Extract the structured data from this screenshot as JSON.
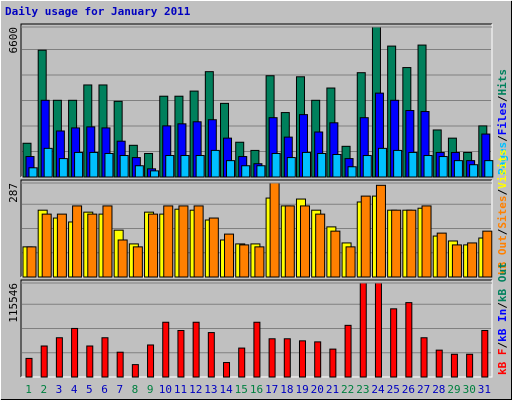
{
  "chart_data": [
    {
      "type": "bar",
      "title": "Daily usage for January 2011",
      "title_color": "#0000c0",
      "ylim": [
        0,
        6600
      ],
      "yticks": [
        6600
      ],
      "separator": "/",
      "legend": [
        {
          "name": "Pages",
          "color": "#00c0ff"
        },
        {
          "name": "Files",
          "color": "#0000ff"
        },
        {
          "name": "Hits",
          "color": "#00805c"
        }
      ],
      "series": [
        {
          "color": "#00805c",
          "values": [
            1485,
            5580,
            3375,
            3375,
            4050,
            4050,
            3330,
            1395,
            1035,
            3555,
            3555,
            3780,
            4635,
            3240,
            1530,
            1170,
            4455,
            2835,
            4410,
            3375,
            3915,
            1350,
            4590,
            6600,
            5760,
            4815,
            5805,
            2070,
            1710,
            1080,
            2250
          ]
        },
        {
          "color": "#0000ff",
          "values": [
            900,
            3375,
            2025,
            2160,
            2205,
            2160,
            1575,
            855,
            360,
            2250,
            2340,
            2430,
            2520,
            1710,
            900,
            585,
            2610,
            1755,
            2745,
            1980,
            2385,
            810,
            2610,
            3690,
            3375,
            2925,
            2880,
            1080,
            1080,
            720,
            1890
          ]
        },
        {
          "color": "#00c0ff",
          "values": [
            405,
            1260,
            810,
            1080,
            1080,
            1035,
            945,
            495,
            270,
            945,
            945,
            945,
            1170,
            720,
            495,
            495,
            1035,
            855,
            1080,
            1035,
            990,
            450,
            945,
            1260,
            1170,
            1080,
            945,
            900,
            720,
            540,
            720
          ]
        }
      ]
    },
    {
      "type": "bar",
      "ylim": [
        0,
        287
      ],
      "yticks": [
        287
      ],
      "separator": "/",
      "legend": [
        {
          "name": "kB Out",
          "color": "#ff8000"
        },
        {
          "name": "Sites",
          "color": "#ff8000"
        },
        {
          "name": "Visits",
          "color": "#ffff00"
        }
      ],
      "series": [
        {
          "color": "#ffff00",
          "values": [
            92,
            204,
            180,
            168,
            198,
            192,
            143,
            101,
            198,
            192,
            207,
            204,
            174,
            113,
            101,
            101,
            241,
            217,
            238,
            204,
            153,
            104,
            229,
            247,
            204,
            204,
            210,
            125,
            110,
            98,
            119
          ]
        },
        {
          "color": "#ff8000",
          "values": [
            92,
            192,
            192,
            217,
            192,
            217,
            113,
            92,
            192,
            217,
            217,
            217,
            180,
            131,
            98,
            92,
            287,
            217,
            217,
            192,
            140,
            92,
            247,
            280,
            204,
            204,
            217,
            134,
            98,
            104,
            140
          ]
        }
      ]
    },
    {
      "type": "bar",
      "ylim": [
        0,
        115546
      ],
      "yticks": [
        115546
      ],
      "separator": "/",
      "legend": [
        {
          "name": "kB F",
          "color": "#ff0000"
        },
        {
          "name": "kB In",
          "color": "#0000ff"
        },
        {
          "name": "kB Out",
          "color": "#00805c"
        }
      ],
      "series": [
        {
          "color": "#ff0000",
          "values": [
            22860,
            38100,
            48260,
            59690,
            38100,
            48260,
            30480,
            15240,
            39370,
            67310,
            57150,
            67310,
            54610,
            17780,
            35560,
            67310,
            46990,
            46990,
            44450,
            43180,
            34290,
            63500,
            115546,
            115546,
            83820,
            91440,
            48260,
            33020,
            27940,
            27940,
            57150
          ]
        }
      ],
      "categories": [
        "1",
        "2",
        "3",
        "4",
        "5",
        "6",
        "7",
        "8",
        "9",
        "10",
        "11",
        "12",
        "13",
        "14",
        "15",
        "16",
        "17",
        "18",
        "19",
        "20",
        "21",
        "22",
        "23",
        "24",
        "25",
        "26",
        "27",
        "28",
        "29",
        "30",
        "31"
      ],
      "weekday_color": "#0000c0",
      "weekend_color": "#008040",
      "weekends": [
        0,
        1,
        7,
        8,
        14,
        15,
        21,
        22,
        28,
        29
      ]
    }
  ]
}
